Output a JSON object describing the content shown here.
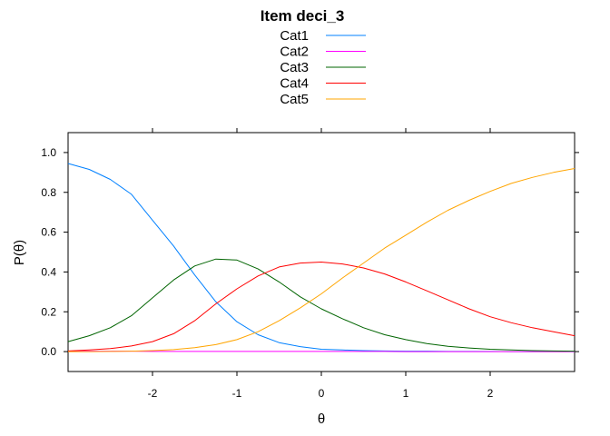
{
  "chart_data": {
    "type": "line",
    "title": "Item deci_3",
    "xlabel": "θ",
    "ylabel": "P(θ)",
    "xlim": [
      -3,
      3
    ],
    "ylim": [
      -0.1,
      1.1
    ],
    "xticks": [
      -2,
      -1,
      0,
      1,
      2
    ],
    "xtick_labels": [
      "-2",
      "-1",
      "0",
      "1",
      "2"
    ],
    "yticks": [
      0,
      0.2,
      0.4,
      0.6,
      0.8,
      1.0
    ],
    "ytick_labels": [
      "0.0",
      "0.2",
      "0.4",
      "0.6",
      "0.8",
      "1.0"
    ],
    "legend_position": "top",
    "grid": false,
    "x": [
      -3.0,
      -2.75,
      -2.5,
      -2.25,
      -2.0,
      -1.75,
      -1.5,
      -1.25,
      -1.0,
      -0.75,
      -0.5,
      -0.25,
      0.0,
      0.25,
      0.5,
      0.75,
      1.0,
      1.25,
      1.5,
      1.75,
      2.0,
      2.25,
      2.5,
      2.75,
      3.0
    ],
    "series": [
      {
        "name": "Cat1",
        "color": "#0080FF",
        "values": [
          0.945,
          0.915,
          0.865,
          0.79,
          0.66,
          0.53,
          0.385,
          0.25,
          0.15,
          0.085,
          0.045,
          0.025,
          0.012,
          0.008,
          0.005,
          0.003,
          0.002,
          0.002,
          0.001,
          0.001,
          0.001,
          0.0,
          0.0,
          0.0,
          0.0
        ]
      },
      {
        "name": "Cat2",
        "color": "#FF00FF",
        "values": [
          0.002,
          0.002,
          0.002,
          0.002,
          0.001,
          0.001,
          0.001,
          0.001,
          0.001,
          0.001,
          0.001,
          0.001,
          0.001,
          0.001,
          0.001,
          0.001,
          0.0,
          0.0,
          0.0,
          0.0,
          0.0,
          0.0,
          0.0,
          0.0,
          0.0
        ]
      },
      {
        "name": "Cat3",
        "color": "#006400",
        "values": [
          0.05,
          0.08,
          0.12,
          0.18,
          0.27,
          0.36,
          0.43,
          0.465,
          0.46,
          0.415,
          0.35,
          0.275,
          0.215,
          0.165,
          0.12,
          0.085,
          0.06,
          0.04,
          0.027,
          0.018,
          0.012,
          0.008,
          0.005,
          0.003,
          0.002
        ]
      },
      {
        "name": "Cat4",
        "color": "#FF0000",
        "values": [
          0.003,
          0.008,
          0.015,
          0.028,
          0.05,
          0.09,
          0.155,
          0.24,
          0.315,
          0.38,
          0.425,
          0.445,
          0.45,
          0.44,
          0.42,
          0.39,
          0.35,
          0.305,
          0.26,
          0.215,
          0.175,
          0.145,
          0.12,
          0.1,
          0.08
        ]
      },
      {
        "name": "Cat5",
        "color": "#FFA500",
        "values": [
          0.0,
          0.0,
          0.001,
          0.002,
          0.005,
          0.01,
          0.02,
          0.035,
          0.06,
          0.1,
          0.155,
          0.22,
          0.29,
          0.37,
          0.445,
          0.52,
          0.585,
          0.65,
          0.71,
          0.76,
          0.805,
          0.845,
          0.875,
          0.9,
          0.92
        ]
      }
    ]
  }
}
